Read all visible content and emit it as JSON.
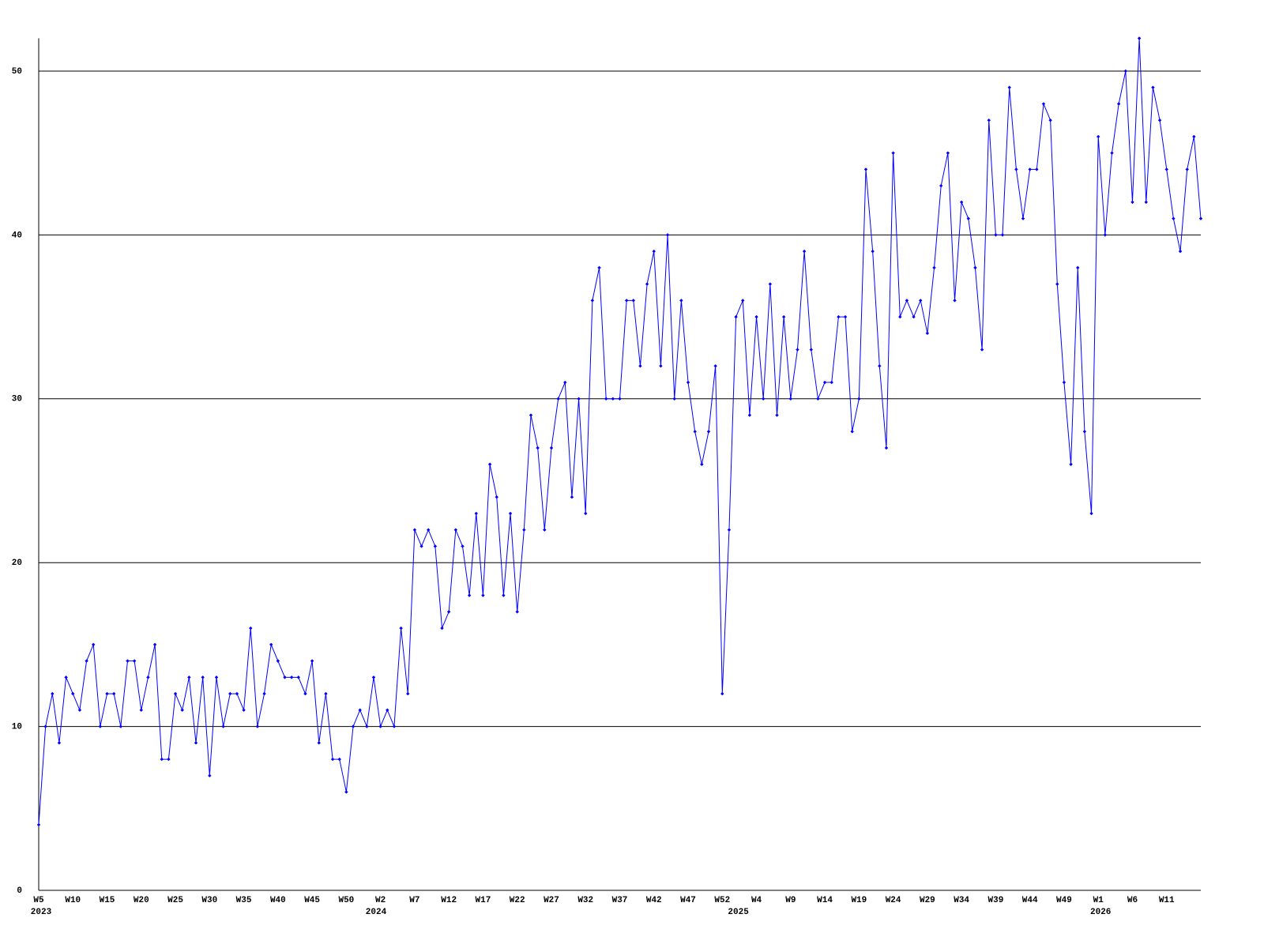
{
  "chart_data": {
    "type": "line",
    "categories": [
      "W5",
      null,
      null,
      null,
      null,
      "W10",
      null,
      null,
      null,
      null,
      "W15",
      null,
      null,
      null,
      null,
      "W20",
      null,
      null,
      null,
      null,
      "W25",
      null,
      null,
      null,
      null,
      "W30",
      null,
      null,
      null,
      null,
      "W35",
      null,
      null,
      null,
      null,
      "W40",
      null,
      null,
      null,
      null,
      "W45",
      null,
      null,
      null,
      null,
      "W50",
      null,
      null,
      null,
      null,
      "W2",
      null,
      null,
      null,
      null,
      "W7",
      null,
      null,
      null,
      null,
      "W12",
      null,
      null,
      null,
      null,
      "W17",
      null,
      null,
      null,
      null,
      "W22",
      null,
      null,
      null,
      null,
      "W27",
      null,
      null,
      null,
      null,
      "W32",
      null,
      null,
      null,
      null,
      "W37",
      null,
      null,
      null,
      null,
      "W42",
      null,
      null,
      null,
      null,
      "W47",
      null,
      null,
      null,
      null,
      "W52",
      null,
      null,
      null,
      null,
      "W4",
      null,
      null,
      null,
      null,
      "W9",
      null,
      null,
      null,
      null,
      "W14",
      null,
      null,
      null,
      null,
      "W19",
      null,
      null,
      null,
      null,
      "W24",
      null,
      null,
      null,
      null,
      "W29",
      null,
      null,
      null,
      null,
      "W34",
      null,
      null,
      null,
      null,
      "W39",
      null,
      null,
      null,
      null,
      "W44",
      null,
      null,
      null,
      null,
      "W49",
      null,
      null,
      null,
      null,
      "W1",
      null,
      null,
      null,
      null,
      "W6",
      null,
      null,
      null,
      null,
      "W11",
      null,
      null,
      null,
      null,
      null
    ],
    "category_years": [
      "2023",
      null,
      null,
      null,
      null,
      null,
      null,
      null,
      null,
      null,
      null,
      null,
      null,
      null,
      null,
      null,
      null,
      null,
      null,
      null,
      null,
      null,
      null,
      null,
      null,
      null,
      null,
      null,
      null,
      null,
      null,
      null,
      null,
      null,
      null,
      null,
      null,
      null,
      null,
      null,
      null,
      null,
      null,
      null,
      null,
      null,
      null,
      null,
      null,
      "2024",
      null,
      null,
      null,
      null,
      null,
      null,
      null,
      null,
      null,
      null,
      null,
      null,
      null,
      null,
      null,
      null,
      null,
      null,
      null,
      null,
      null,
      null,
      null,
      null,
      null,
      null,
      null,
      null,
      null,
      null,
      null,
      null,
      null,
      null,
      null,
      null,
      null,
      null,
      null,
      null,
      null,
      null,
      null,
      null,
      null,
      null,
      null,
      null,
      null,
      null,
      null,
      null,
      "2025",
      null,
      null,
      null,
      null,
      null,
      null,
      null,
      null,
      null,
      null,
      null,
      null,
      null,
      null,
      null,
      null,
      null,
      null,
      null,
      null,
      null,
      null,
      null,
      null,
      null,
      null,
      null,
      null,
      null,
      null,
      null,
      null,
      null,
      null,
      null,
      null,
      null,
      null,
      null,
      null,
      null,
      null,
      null,
      null,
      null,
      null,
      null,
      null,
      null,
      null,
      null,
      null,
      "2026",
      null,
      null,
      null,
      null,
      null,
      null,
      null,
      null,
      null,
      null,
      null,
      null,
      null,
      null,
      null
    ],
    "series": [
      {
        "color": "#0000ff",
        "values": [
          4,
          10,
          12,
          9,
          13,
          12,
          11,
          14,
          15,
          10,
          12,
          12,
          10,
          14,
          14,
          11,
          13,
          15,
          8,
          8,
          12,
          11,
          13,
          9,
          13,
          7,
          13,
          10,
          12,
          12,
          11,
          16,
          10,
          12,
          15,
          14,
          13,
          13,
          13,
          12,
          14,
          9,
          12,
          8,
          8,
          6,
          10,
          11,
          10,
          13,
          10,
          11,
          10,
          16,
          12,
          22,
          21,
          22,
          21,
          16,
          17,
          22,
          21,
          18,
          23,
          18,
          26,
          24,
          18,
          23,
          17,
          22,
          29,
          27,
          22,
          27,
          30,
          31,
          24,
          30,
          23,
          36,
          38,
          30,
          30,
          30,
          36,
          36,
          32,
          37,
          39,
          32,
          40,
          30,
          36,
          31,
          28,
          26,
          28,
          32,
          12,
          22,
          35,
          36,
          29,
          35,
          30,
          37,
          29,
          35,
          30,
          33,
          39,
          33,
          30,
          31,
          31,
          35,
          35,
          28,
          30,
          44,
          39,
          32,
          27,
          45,
          35,
          36,
          35,
          36,
          34,
          38,
          43,
          45,
          36,
          42,
          41,
          38,
          33,
          47,
          40,
          40,
          49,
          44,
          41,
          44,
          44,
          48,
          47,
          37,
          31,
          26,
          38,
          28,
          23,
          46,
          40,
          45,
          48,
          50,
          42,
          52,
          42,
          49,
          47,
          44,
          41,
          39,
          44,
          46,
          41
        ]
      }
    ],
    "ylim": [
      0,
      52
    ],
    "yticks": [
      0,
      10,
      20,
      30,
      40,
      50
    ],
    "grid": true
  }
}
